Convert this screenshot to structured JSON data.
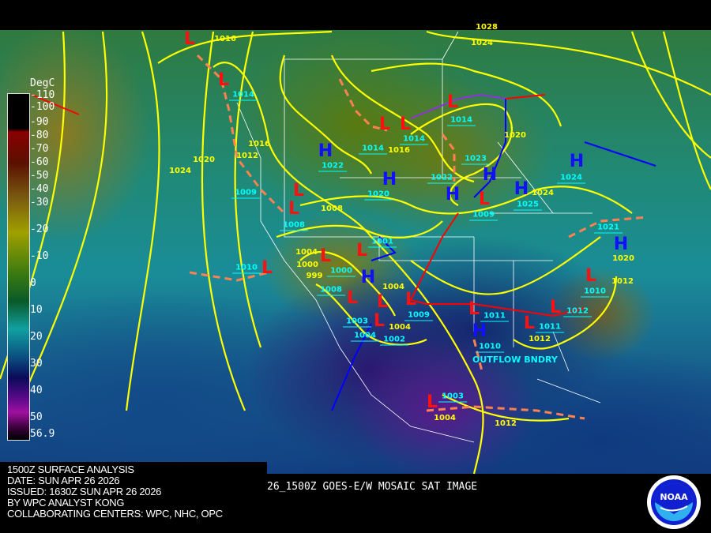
{
  "title": "1500Z SURFACE ANALYSIS",
  "info": {
    "line1": "1500Z SURFACE ANALYSIS",
    "date": "DATE: SUN APR 26 2026",
    "issued": "ISSUED: 1630Z SUN APR 26 2026",
    "analyst": "BY WPC ANALYST KONG",
    "centers": "COLLABORATING CENTERS: WPC, NHC, OPC"
  },
  "satellite_label": "26_1500Z GOES-E/W MOSAIC SAT IMAGE",
  "logo_text": "NOAA",
  "color_scale": {
    "unit": "DegC",
    "ticks": [
      "-110",
      "-100",
      "-90",
      "-80",
      "-70",
      "-60",
      "-50",
      "-40",
      "-30",
      "-20",
      "-10",
      "0",
      "10",
      "20",
      "30",
      "40",
      "50",
      "56.9"
    ]
  },
  "colors": {
    "low": "#ff1010",
    "high": "#1010ff",
    "isobar": "#ffff00",
    "pressure_label": "#00ffff",
    "trough": "#ff8050",
    "cold_front": "#0000ff",
    "warm_front": "#ff0000",
    "occluded_front": "#9030e0"
  },
  "pressure_centers": [
    {
      "type": "L",
      "value": ""
    },
    {
      "type": "L",
      "value": "1014"
    },
    {
      "type": "L",
      "value": "1009"
    },
    {
      "type": "L",
      "value": "1008"
    },
    {
      "type": "L",
      "value": "1010"
    },
    {
      "type": "L",
      "value": "1000"
    },
    {
      "type": "L",
      "value": "1014"
    },
    {
      "type": "L",
      "value": "1014"
    },
    {
      "type": "L",
      "value": "1014"
    },
    {
      "type": "H",
      "value": "1022"
    },
    {
      "type": "H",
      "value": "1020"
    },
    {
      "type": "H",
      "value": "1022"
    },
    {
      "type": "L",
      "value": "1009"
    },
    {
      "type": "H",
      "value": "1023"
    },
    {
      "type": "H",
      "value": "1025"
    },
    {
      "type": "H",
      "value": "1024"
    },
    {
      "type": "H",
      "value": "1021"
    },
    {
      "type": "L",
      "value": "1010"
    },
    {
      "type": "L",
      "value": "1001"
    },
    {
      "type": "H",
      "value": "1008"
    },
    {
      "type": "L",
      "value": "1004"
    },
    {
      "type": "L",
      "value": "1002"
    },
    {
      "type": "L",
      "value": "1003"
    },
    {
      "type": "L",
      "value": "1009"
    },
    {
      "type": "L",
      "value": "1011"
    },
    {
      "type": "H",
      "value": "1010"
    },
    {
      "type": "L",
      "value": "1011"
    },
    {
      "type": "L",
      "value": "1012"
    },
    {
      "type": "L",
      "value": "1003"
    }
  ],
  "isobar_labels": [
    "1028",
    "1024",
    "1016",
    "1016",
    "1012",
    "1020",
    "1024",
    "1016",
    "1020",
    "1024",
    "1008",
    "1000",
    "999",
    "1004",
    "1004",
    "1004",
    "1020",
    "1012",
    "1012",
    "1012",
    "1004"
  ],
  "annotations": {
    "outflow": "OUTFLOW BNDRY"
  }
}
